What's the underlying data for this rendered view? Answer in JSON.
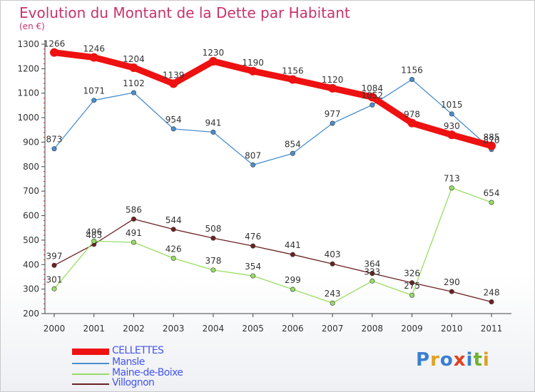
{
  "chart_data": {
    "type": "line",
    "title": "Evolution du Montant de la Dette par Habitant",
    "subtitle": "(en €)",
    "x": [
      "2000",
      "2001",
      "2002",
      "2003",
      "2004",
      "2005",
      "2006",
      "2007",
      "2008",
      "2009",
      "2010",
      "2011"
    ],
    "ylim": [
      200,
      1300
    ],
    "yticks": [
      200,
      300,
      400,
      500,
      600,
      700,
      800,
      900,
      1000,
      1100,
      1200,
      1300
    ],
    "grid": false,
    "legend_position": "bottom-left",
    "series": [
      {
        "name": "CELLETTES",
        "color": "#ee1111",
        "values": [
          1266,
          1246,
          1204,
          1139,
          1230,
          1190,
          1156,
          1120,
          1084,
          978,
          930,
          885
        ]
      },
      {
        "name": "Mansle",
        "color": "#4a8ed0",
        "values": [
          873,
          1071,
          1102,
          954,
          941,
          807,
          854,
          977,
          1052,
          1156,
          1015,
          870
        ]
      },
      {
        "name": "Maine-de-Boixe",
        "color": "#99dd66",
        "values": [
          301,
          496,
          491,
          426,
          378,
          354,
          299,
          243,
          333,
          275,
          713,
          654
        ]
      },
      {
        "name": "Villognon",
        "color": "#6b2222",
        "values": [
          397,
          483,
          586,
          544,
          508,
          476,
          441,
          403,
          364,
          326,
          290,
          248
        ]
      }
    ]
  },
  "logo": {
    "text": "Proxiti",
    "letters": [
      {
        "ch": "P",
        "color": "#3a7fd0"
      },
      {
        "ch": "r",
        "color": "#e0a020"
      },
      {
        "ch": "o",
        "color": "#3a7fd0"
      },
      {
        "ch": "x",
        "color": "#e04020"
      },
      {
        "ch": "i",
        "color": "#3a7fd0"
      },
      {
        "ch": "t",
        "color": "#70b030"
      },
      {
        "ch": "i",
        "color": "#e0a020"
      }
    ]
  }
}
